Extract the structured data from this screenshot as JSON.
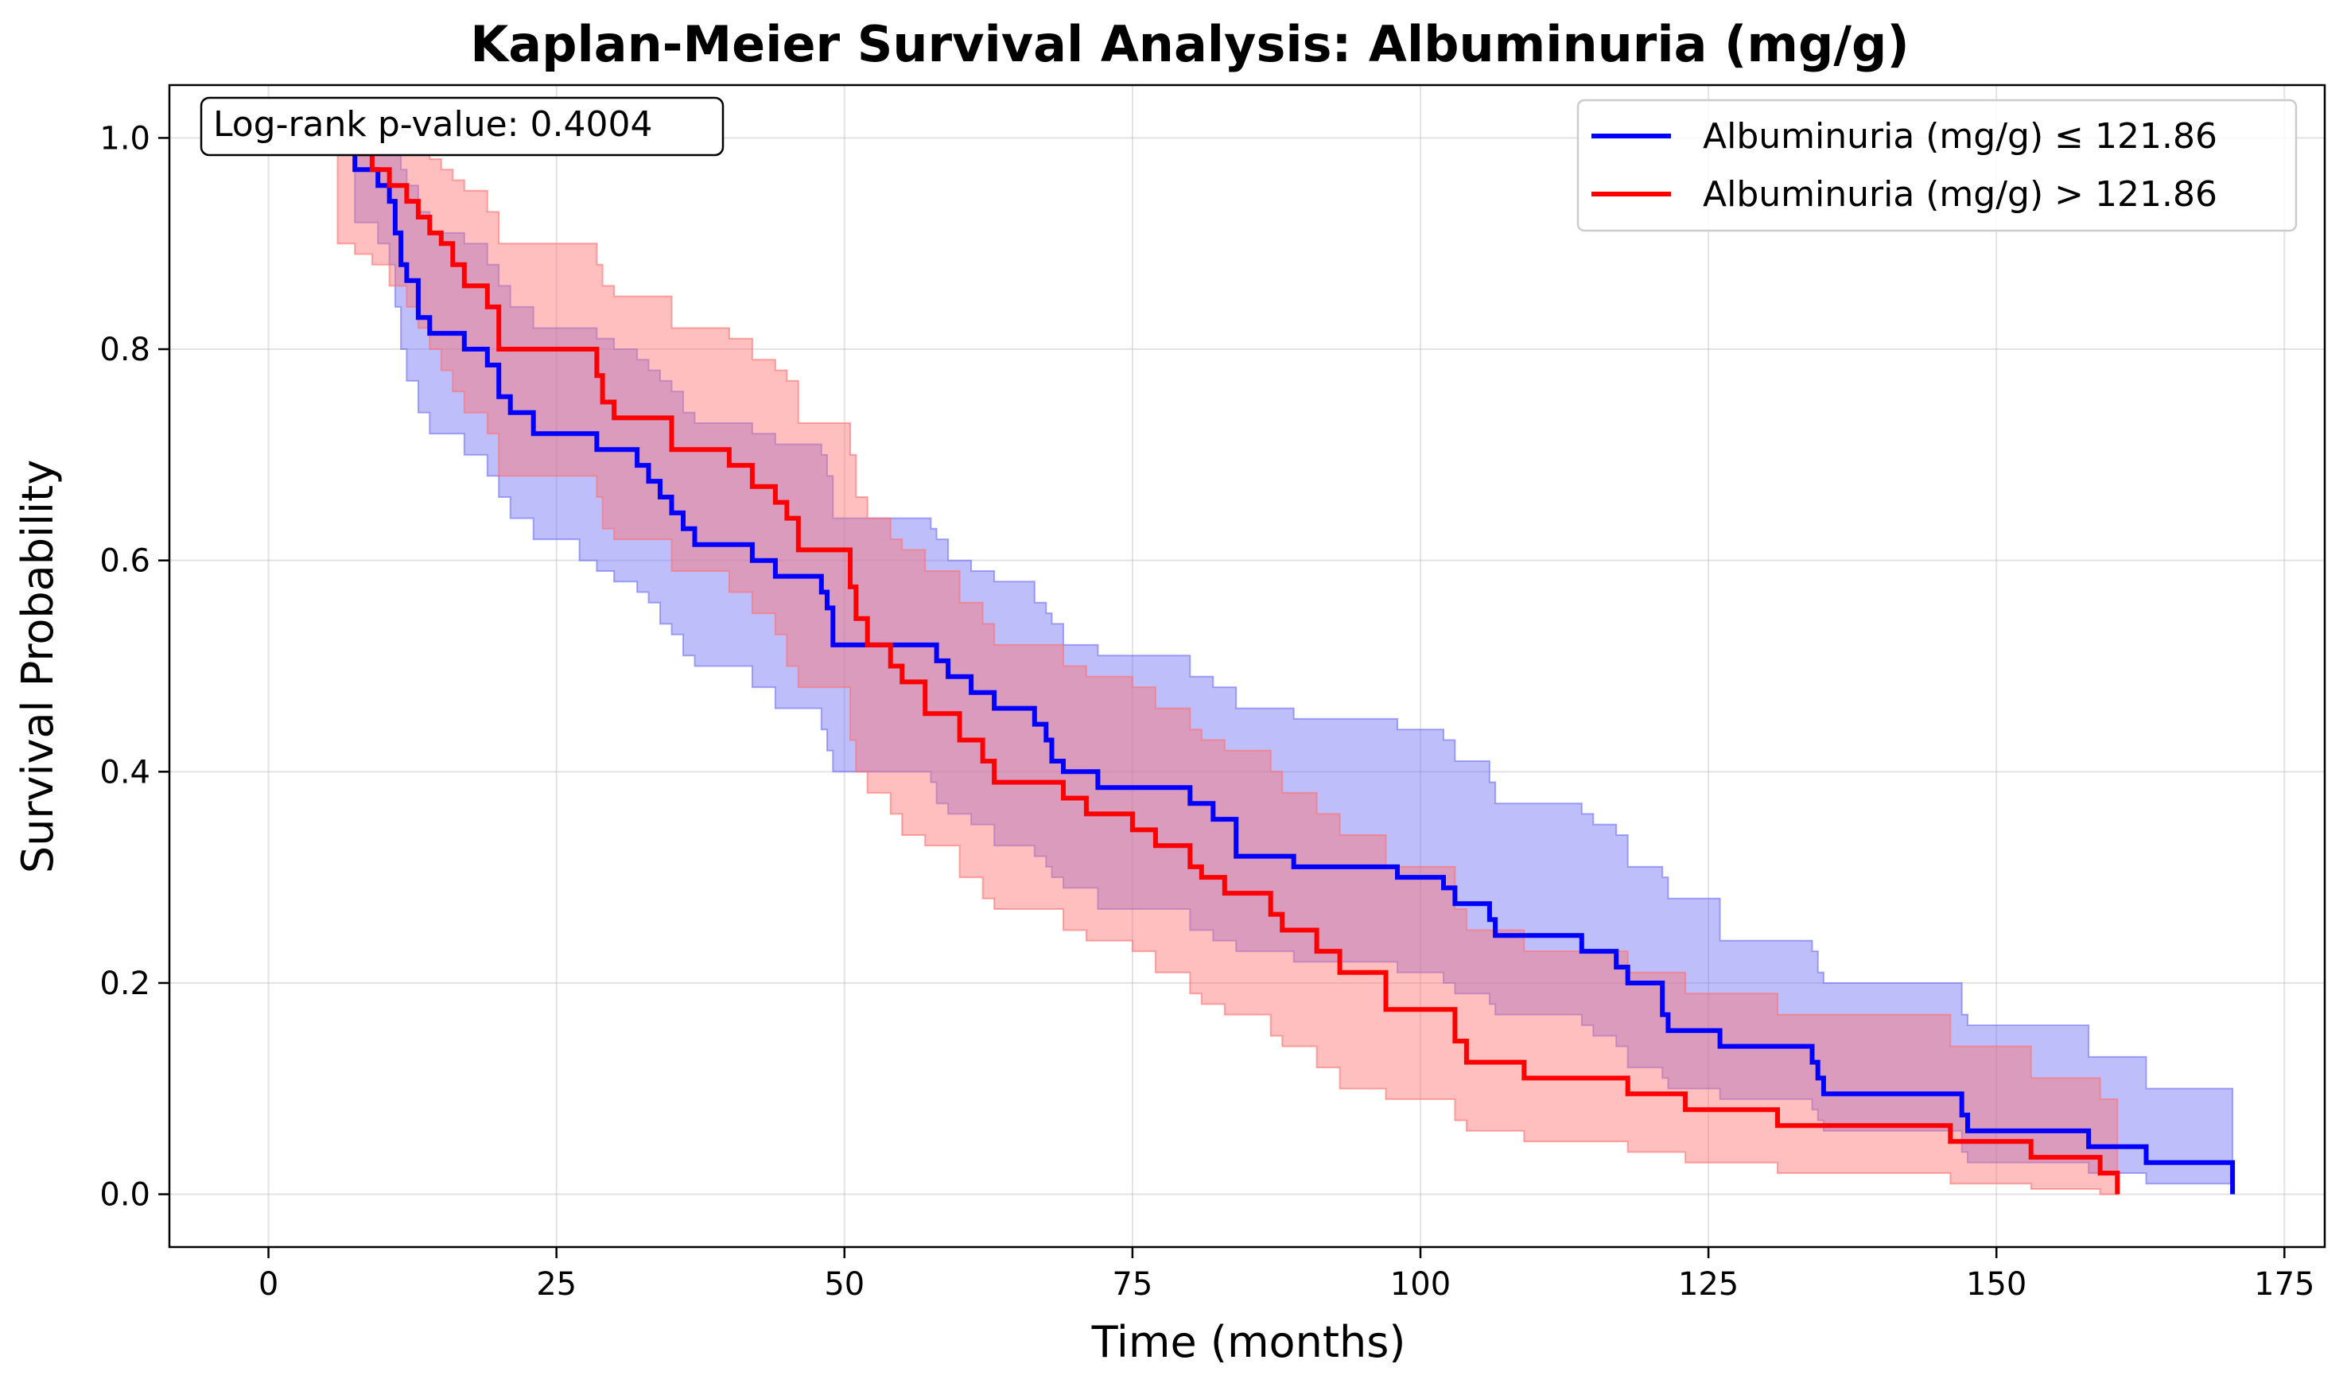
{
  "chart_data": {
    "type": "line",
    "title": "Kaplan-Meier Survival Analysis: Albuminuria (mg/g)",
    "xlabel": "Time (months)",
    "ylabel": "Survival Probability",
    "xlim": [
      -8.6,
      178.5
    ],
    "ylim": [
      -0.05,
      1.05
    ],
    "xticks": [
      0,
      25,
      50,
      75,
      100,
      125,
      150,
      175
    ],
    "yticks": [
      0.0,
      0.2,
      0.4,
      0.6,
      0.8,
      1.0
    ],
    "xtick_labels": [
      "0",
      "25",
      "50",
      "75",
      "100",
      "125",
      "150",
      "175"
    ],
    "ytick_labels": [
      "0.0",
      "0.2",
      "0.4",
      "0.6",
      "0.8",
      "1.0"
    ],
    "grid": true,
    "legend_position": "top-right",
    "annotation": "Log-rank p-value: 0.4004",
    "series": [
      {
        "name": "Albuminuria (mg/g) ≤ 121.86",
        "color": "#0000ff",
        "band_color": "#6f6ff7",
        "step_x": [
          7.5,
          7.5,
          9.5,
          10.5,
          11.0,
          11.5,
          12.0,
          13.0,
          14.0,
          17.0,
          19.0,
          20.0,
          21.0,
          23.0,
          27.0,
          28.5,
          30.0,
          32.0,
          33.0,
          34.0,
          35.0,
          36.0,
          37.0,
          42.0,
          44.0,
          48.0,
          48.5,
          49.0,
          57.5,
          58.0,
          59.0,
          61.0,
          63.0,
          66.5,
          67.5,
          68.0,
          69.0,
          72.0,
          80.0,
          82.0,
          84.0,
          89.0,
          98.0,
          102.0,
          103.0,
          106.0,
          106.5,
          114.0,
          115.0,
          117.0,
          118.0,
          121.0,
          121.5,
          126.0,
          134.0,
          134.5,
          135.0,
          147.0,
          147.5,
          158.0,
          163.0,
          170.5
        ],
        "step_y": [
          1.0,
          0.97,
          0.955,
          0.94,
          0.91,
          0.88,
          0.865,
          0.83,
          0.815,
          0.8,
          0.785,
          0.755,
          0.74,
          0.72,
          0.72,
          0.705,
          0.705,
          0.69,
          0.675,
          0.66,
          0.645,
          0.63,
          0.615,
          0.6,
          0.585,
          0.57,
          0.555,
          0.52,
          0.52,
          0.505,
          0.49,
          0.475,
          0.46,
          0.445,
          0.43,
          0.41,
          0.4,
          0.385,
          0.37,
          0.355,
          0.32,
          0.31,
          0.3,
          0.29,
          0.275,
          0.26,
          0.245,
          0.23,
          0.23,
          0.215,
          0.2,
          0.17,
          0.155,
          0.14,
          0.125,
          0.11,
          0.095,
          0.075,
          0.06,
          0.045,
          0.03,
          0.015
        ],
        "ci_upper": [
          1.0,
          1.0,
          1.0,
          1.0,
          0.99,
          0.97,
          0.955,
          0.93,
          0.91,
          0.9,
          0.88,
          0.86,
          0.84,
          0.82,
          0.82,
          0.81,
          0.8,
          0.79,
          0.78,
          0.77,
          0.76,
          0.74,
          0.73,
          0.72,
          0.71,
          0.7,
          0.68,
          0.64,
          0.63,
          0.62,
          0.6,
          0.59,
          0.58,
          0.56,
          0.55,
          0.54,
          0.52,
          0.51,
          0.49,
          0.48,
          0.46,
          0.45,
          0.44,
          0.43,
          0.41,
          0.39,
          0.37,
          0.36,
          0.35,
          0.34,
          0.31,
          0.3,
          0.28,
          0.24,
          0.23,
          0.21,
          0.2,
          0.17,
          0.16,
          0.13,
          0.1,
          0.075
        ],
        "ci_lower": [
          1.0,
          0.92,
          0.9,
          0.88,
          0.84,
          0.8,
          0.77,
          0.74,
          0.72,
          0.7,
          0.68,
          0.66,
          0.64,
          0.62,
          0.6,
          0.59,
          0.58,
          0.57,
          0.56,
          0.54,
          0.53,
          0.51,
          0.5,
          0.48,
          0.46,
          0.44,
          0.42,
          0.4,
          0.39,
          0.37,
          0.36,
          0.35,
          0.33,
          0.32,
          0.31,
          0.3,
          0.29,
          0.27,
          0.25,
          0.24,
          0.23,
          0.22,
          0.21,
          0.2,
          0.19,
          0.18,
          0.17,
          0.16,
          0.15,
          0.14,
          0.12,
          0.11,
          0.1,
          0.09,
          0.08,
          0.07,
          0.06,
          0.04,
          0.03,
          0.02,
          0.01,
          0.005
        ]
      },
      {
        "name": "Albuminuria (mg/g) > 121.86",
        "color": "#ff0000",
        "band_color": "#ff7070",
        "step_x": [
          6.0,
          7.5,
          9.0,
          10.5,
          12.0,
          13.0,
          14.0,
          15.0,
          16.0,
          17.0,
          19.0,
          20.0,
          28.5,
          29.0,
          30.0,
          35.0,
          40.0,
          42.0,
          44.0,
          45.0,
          46.0,
          50.5,
          51.0,
          52.0,
          54.0,
          55.0,
          57.0,
          60.0,
          62.0,
          63.0,
          69.0,
          71.0,
          75.0,
          77.0,
          80.0,
          81.0,
          83.0,
          87.0,
          88.0,
          91.0,
          93.0,
          97.0,
          103.0,
          104.0,
          109.0,
          118.0,
          123.0,
          131.0,
          146.0,
          153.0,
          159.0,
          160.5
        ],
        "step_y": [
          1.0,
          0.985,
          0.97,
          0.955,
          0.94,
          0.925,
          0.91,
          0.9,
          0.88,
          0.86,
          0.84,
          0.8,
          0.775,
          0.75,
          0.735,
          0.705,
          0.69,
          0.67,
          0.655,
          0.64,
          0.61,
          0.575,
          0.545,
          0.52,
          0.5,
          0.485,
          0.455,
          0.43,
          0.41,
          0.39,
          0.375,
          0.36,
          0.345,
          0.33,
          0.31,
          0.3,
          0.285,
          0.265,
          0.25,
          0.23,
          0.21,
          0.175,
          0.145,
          0.125,
          0.11,
          0.095,
          0.08,
          0.065,
          0.05,
          0.035,
          0.02,
          0.0
        ],
        "ci_upper": [
          1.0,
          1.0,
          1.0,
          1.0,
          1.0,
          0.99,
          0.98,
          0.97,
          0.96,
          0.95,
          0.93,
          0.9,
          0.88,
          0.86,
          0.85,
          0.82,
          0.81,
          0.79,
          0.78,
          0.77,
          0.73,
          0.7,
          0.66,
          0.64,
          0.62,
          0.61,
          0.59,
          0.56,
          0.54,
          0.52,
          0.5,
          0.49,
          0.48,
          0.46,
          0.44,
          0.43,
          0.42,
          0.4,
          0.38,
          0.36,
          0.34,
          0.31,
          0.27,
          0.25,
          0.23,
          0.21,
          0.19,
          0.17,
          0.14,
          0.11,
          0.09,
          0.09
        ],
        "ci_lower": [
          0.9,
          0.89,
          0.88,
          0.86,
          0.84,
          0.82,
          0.8,
          0.78,
          0.76,
          0.74,
          0.72,
          0.68,
          0.66,
          0.63,
          0.62,
          0.59,
          0.57,
          0.55,
          0.53,
          0.5,
          0.48,
          0.43,
          0.4,
          0.38,
          0.36,
          0.34,
          0.33,
          0.3,
          0.28,
          0.27,
          0.25,
          0.24,
          0.23,
          0.21,
          0.19,
          0.18,
          0.17,
          0.15,
          0.14,
          0.12,
          0.1,
          0.09,
          0.07,
          0.06,
          0.05,
          0.04,
          0.03,
          0.02,
          0.01,
          0.005,
          0.0,
          0.0
        ]
      }
    ]
  }
}
